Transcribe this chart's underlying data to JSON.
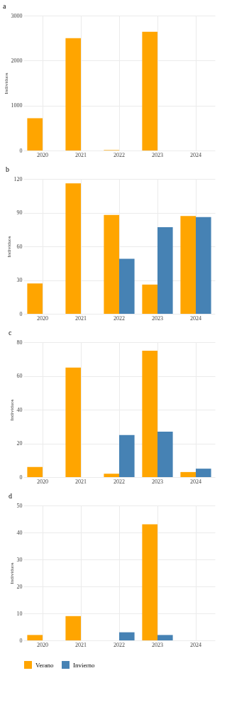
{
  "chart_data": [
    {
      "type": "bar",
      "title": "a",
      "ylabel": "Individuos",
      "categories": [
        "2020",
        "2021",
        "2022",
        "2023",
        "2024"
      ],
      "ylim": [
        0,
        3000
      ],
      "yticks": [
        0,
        1000,
        2000,
        3000
      ],
      "grid": true,
      "series": [
        {
          "color": "#ffa500",
          "values": [
            720,
            2500,
            10,
            2640,
            null
          ]
        },
        {
          "color": "#4682b4",
          "values": [
            null,
            null,
            null,
            null,
            null
          ]
        }
      ]
    },
    {
      "type": "bar",
      "title": "b",
      "ylabel": "Individuos",
      "categories": [
        "2020",
        "2021",
        "2022",
        "2023",
        "2024"
      ],
      "ylim": [
        0,
        120
      ],
      "yticks": [
        0,
        30,
        60,
        90,
        120
      ],
      "grid": true,
      "series": [
        {
          "color": "#ffa500",
          "values": [
            27,
            116,
            88,
            26,
            87
          ]
        },
        {
          "color": "#4682b4",
          "values": [
            null,
            null,
            49,
            77,
            86
          ]
        }
      ]
    },
    {
      "type": "bar",
      "title": "c",
      "ylabel": "Individuos",
      "categories": [
        "2020",
        "2021",
        "2022",
        "2023",
        "2024"
      ],
      "ylim": [
        0,
        80
      ],
      "yticks": [
        0,
        20,
        40,
        60,
        80
      ],
      "grid": true,
      "series": [
        {
          "color": "#ffa500",
          "values": [
            6,
            65,
            2,
            75,
            3
          ]
        },
        {
          "color": "#4682b4",
          "values": [
            null,
            null,
            25,
            27,
            5
          ]
        }
      ]
    },
    {
      "type": "bar",
      "title": "d",
      "ylabel": "Individuos",
      "categories": [
        "2020",
        "2021",
        "2022",
        "2023",
        "2024"
      ],
      "ylim": [
        0,
        50
      ],
      "yticks": [
        0,
        10,
        20,
        30,
        40,
        50
      ],
      "grid": true,
      "legend": "bottom",
      "series": [
        {
          "name": "Verano",
          "color": "#ffa500",
          "values": [
            2,
            9,
            null,
            43,
            null
          ]
        },
        {
          "name": "Invierno",
          "color": "#4682b4",
          "values": [
            null,
            null,
            3,
            2,
            null
          ]
        }
      ]
    }
  ]
}
